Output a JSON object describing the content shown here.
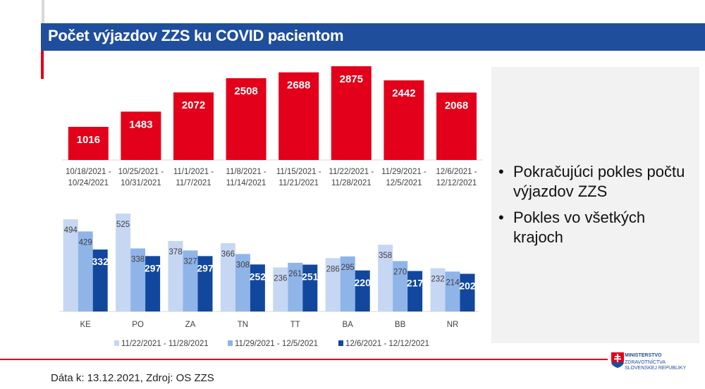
{
  "title": "Počet výjazdov ZZS ku COVID pacientom",
  "colors": {
    "title_bar": "#1f4e9c",
    "accent_red": "#e2001a",
    "series": [
      "#c6d7f3",
      "#8fb4e8",
      "#12479e"
    ]
  },
  "bullets": [
    "Pokračujúci pokles počtu výjazdov ZZS",
    "Pokles vo všetkých krajoch"
  ],
  "footer": {
    "source": "Dáta k: 13.12.2021, Zdroj: OS ZZS",
    "logo_line1": "MINISTERSTVO",
    "logo_line2": "ZDRAVOTNÍCTVA SLOVENSKEJ REPUBLIKY"
  },
  "chart_data": [
    {
      "type": "bar",
      "categories": [
        [
          "10/18/2021 -",
          "10/24/2021"
        ],
        [
          "10/25/2021 -",
          "10/31/2021"
        ],
        [
          "11/1/2021 -",
          "11/7/2021"
        ],
        [
          "11/8/2021 -",
          "11/14/2021"
        ],
        [
          "11/15/2021 -",
          "11/21/2021"
        ],
        [
          "11/22/2021 -",
          "11/28/2021"
        ],
        [
          "11/29/2021 -",
          "12/5/2021"
        ],
        [
          "12/6/2021 -",
          "12/12/2021"
        ]
      ],
      "values": [
        1016,
        1483,
        2072,
        2508,
        2688,
        2875,
        2442,
        2068
      ],
      "color": "#e2001a",
      "ylim": [
        0,
        2875
      ],
      "grid": false
    },
    {
      "type": "bar",
      "categories": [
        "KE",
        "PO",
        "ZA",
        "TN",
        "TT",
        "BA",
        "BB",
        "NR"
      ],
      "series": [
        {
          "name": "11/22/2021 - 11/28/2021",
          "values": [
            494,
            525,
            378,
            366,
            236,
            286,
            358,
            232
          ]
        },
        {
          "name": "11/29/2021 - 12/5/2021",
          "values": [
            429,
            338,
            327,
            308,
            261,
            295,
            270,
            214
          ]
        },
        {
          "name": "12/6/2021 - 12/12/2021",
          "values": [
            332,
            297,
            297,
            252,
            251,
            220,
            217,
            202
          ]
        }
      ],
      "ylim": [
        0,
        525
      ],
      "legend": "bottom",
      "grid": false
    }
  ]
}
